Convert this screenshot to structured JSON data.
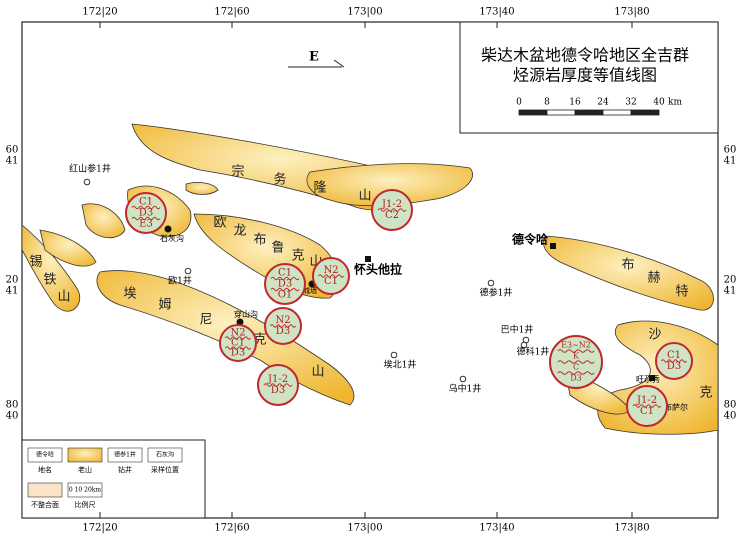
{
  "title": {
    "lines": [
      "柴达木盆地德令哈地区全吉群",
      "烃源岩厚度等值线图"
    ]
  },
  "north_arrow": "E",
  "scale": {
    "ticks": [
      "0",
      "8",
      "16",
      "24",
      "32",
      "40"
    ],
    "unit": "km"
  },
  "coords": {
    "top": [
      "172|20",
      "172|60",
      "173|00",
      "173|40",
      "173|80"
    ],
    "bottom": [
      "172|20",
      "172|60",
      "173|00",
      "173|40",
      "173|80"
    ],
    "left": [
      [
        "60",
        "41"
      ],
      [
        "20",
        "41"
      ],
      [
        "80",
        "40"
      ]
    ],
    "right": [
      [
        "60",
        "41"
      ],
      [
        "20",
        "41"
      ],
      [
        "80",
        "40"
      ]
    ]
  },
  "mountains": [
    [
      "宗",
      "务",
      "隆",
      "山"
    ],
    [
      "欧",
      "龙",
      "布",
      "鲁",
      "克",
      "山"
    ],
    [
      "锡",
      "铁",
      "山"
    ],
    [
      "埃",
      "姆",
      "尼",
      "克",
      "山"
    ],
    [
      "布",
      "赫",
      "特"
    ],
    [
      "沙",
      "克"
    ]
  ],
  "wells": [
    "红山参1井",
    "欧1井",
    "德参1井",
    "巴中1井",
    "德科1井",
    "埃北1井",
    "乌中1井"
  ],
  "places": [
    "德令哈",
    "怀头他拉",
    "石灰沟",
    "城墙",
    "穿山沟",
    "旺尕秀",
    "大布萨尔"
  ],
  "sections": [
    [
      "C1",
      "D3",
      "E3"
    ],
    [
      "J1-2",
      "C2"
    ],
    [
      "N2",
      "C1"
    ],
    [
      "C1",
      "D3",
      "O1"
    ],
    [
      "N2",
      "D3"
    ],
    [
      "N2",
      "C1",
      "D3"
    ],
    [
      "J1-2",
      "D3"
    ],
    [
      "E3~N2",
      "K",
      "C",
      "D3"
    ],
    [
      "C1",
      "D3"
    ],
    [
      "J1-2",
      "C1"
    ]
  ],
  "legend": {
    "items": [
      {
        "sample": "德令哈",
        "label": "地名"
      },
      {
        "sample": "",
        "label": "老山"
      },
      {
        "sample": "德参1井",
        "label": "钻井"
      },
      {
        "sample": "石灰沟",
        "label": "采样位置"
      },
      {
        "sample": "",
        "label": "不整合面"
      },
      {
        "sample": "0 10 20km",
        "label": "比例尺"
      }
    ]
  }
}
